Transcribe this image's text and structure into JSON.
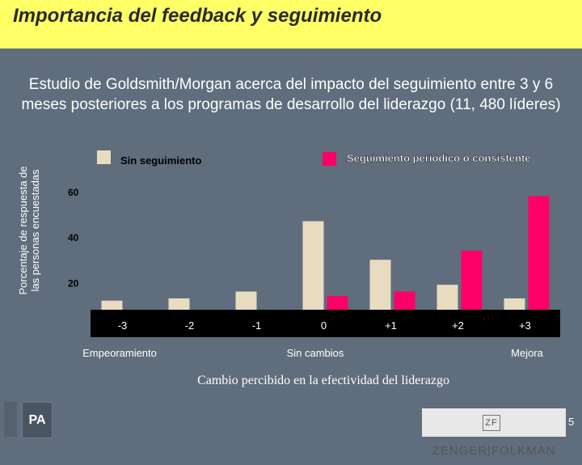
{
  "header": {
    "title": "Importancia del feedback y seguimiento"
  },
  "footer": {
    "left_logo_text": "PA",
    "brand_mark": "ZF",
    "brand_name": "ZENGER|FOLKMAN",
    "page_number": "5"
  },
  "colors": {
    "background": "#5f6d7c",
    "header": "#ffff66",
    "no_followup": "#e8dbc0",
    "followup": "#ff0066"
  },
  "chart_data": {
    "type": "bar",
    "title": "Estudio de Goldsmith/Morgan acerca del impacto  del seguimiento entre 3 y 6 meses posteriores a los programas de desarrollo del liderazgo (11, 480 líderes)",
    "xlabel": "Cambio percibido en la efectividad del liderazgo",
    "ylabel": "Porcentaje de respuesta de las personas encuestadas",
    "categories": [
      "-3",
      "-2",
      "-1",
      "0",
      "+1",
      "+2",
      "+3"
    ],
    "x_group_labels": [
      "Empeoramiento",
      "Sin cambios",
      "Mejora"
    ],
    "yticks": [
      20,
      40,
      60
    ],
    "ylim": [
      8,
      65
    ],
    "grid": false,
    "legend_position": "top",
    "series": [
      {
        "name": "Sin seguimiento",
        "color": "#e8dbc0",
        "values": [
          12,
          13,
          16,
          47,
          30,
          19,
          13
        ]
      },
      {
        "name": "Seguimiento periódico o consistente",
        "color": "#ff0066",
        "values": [
          0,
          0,
          0,
          14,
          16,
          34,
          58
        ]
      }
    ]
  }
}
